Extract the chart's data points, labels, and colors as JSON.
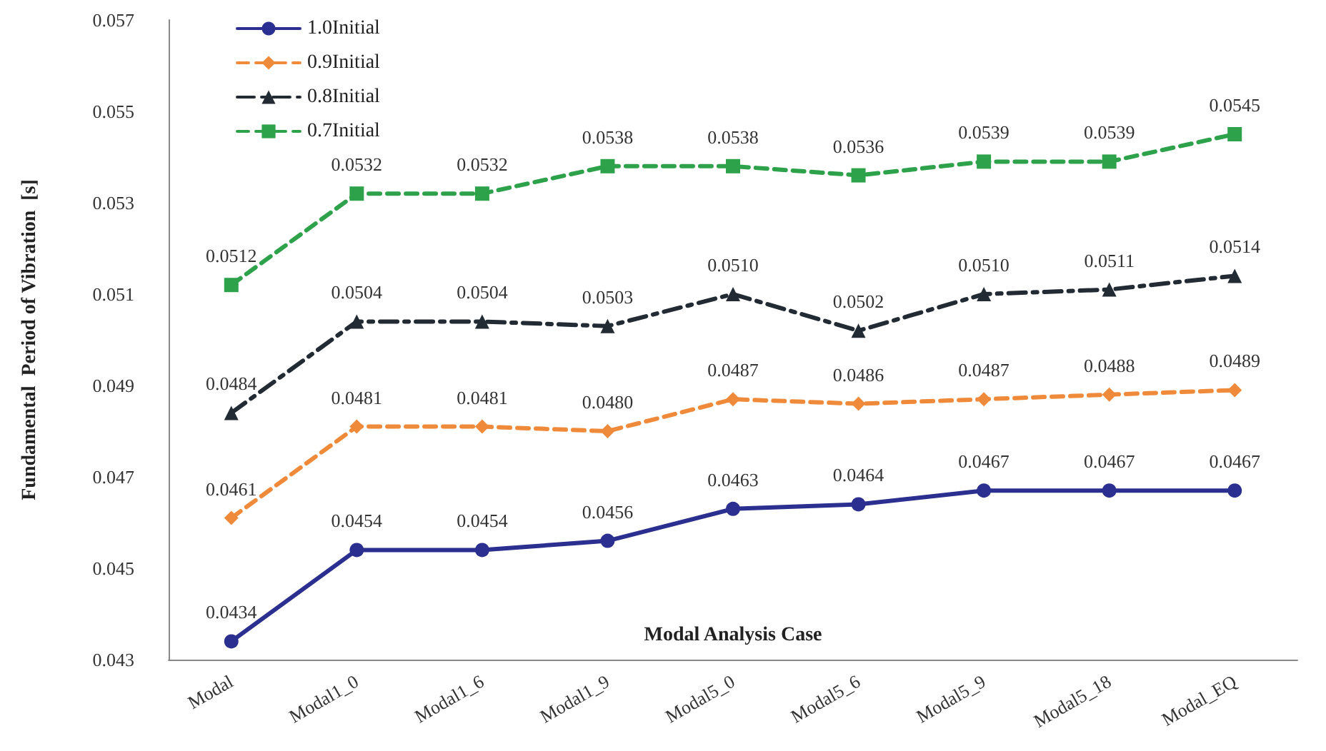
{
  "chart_data": {
    "type": "line",
    "xlabel": "Modal Analysis Case",
    "ylabel": "Fundamental  Period of Vibration  [s]",
    "categories": [
      "Modal",
      "Modal1_0",
      "Modal1_6",
      "Modal1_9",
      "Modal5_0",
      "Modal5_6",
      "Modal5_9",
      "Modal5_18",
      "Modal_EQ"
    ],
    "series": [
      {
        "name": "1.0Initial",
        "color": "#2b2f8f",
        "marker": "circle",
        "line_style": "solid",
        "values": [
          0.0434,
          0.0454,
          0.0454,
          0.0456,
          0.0463,
          0.0464,
          0.0467,
          0.0467,
          0.0467
        ],
        "value_labels": [
          "0.0434",
          "0.0454",
          "0.0454",
          "0.0456",
          "0.0463",
          "0.0464",
          "0.0467",
          "0.0467",
          "0.0467"
        ]
      },
      {
        "name": "0.9Initial",
        "color": "#ef8a3a",
        "marker": "diamond",
        "line_style": "dashed",
        "values": [
          0.0461,
          0.0481,
          0.0481,
          0.048,
          0.0487,
          0.0486,
          0.0487,
          0.0488,
          0.0489
        ],
        "value_labels": [
          "0.0461",
          "0.0481",
          "0.0481",
          "0.0480",
          "0.0487",
          "0.0486",
          "0.0487",
          "0.0488",
          "0.0489"
        ]
      },
      {
        "name": "0.8Initial",
        "color": "#222a33",
        "marker": "triangle",
        "line_style": "dashdot",
        "values": [
          0.0484,
          0.0504,
          0.0504,
          0.0503,
          0.051,
          0.0502,
          0.051,
          0.0511,
          0.0514
        ],
        "value_labels": [
          "0.0484",
          "0.0504",
          "0.0504",
          "0.0503",
          "0.0510",
          "0.0502",
          "0.0510",
          "0.0511",
          "0.0514"
        ]
      },
      {
        "name": "0.7Initial",
        "color": "#2ea24a",
        "marker": "square",
        "line_style": "dashed",
        "values": [
          0.0512,
          0.0532,
          0.0532,
          0.0538,
          0.0538,
          0.0536,
          0.0539,
          0.0539,
          0.0545
        ],
        "value_labels": [
          "0.0512",
          "0.0532",
          "0.0532",
          "0.0538",
          "0.0538",
          "0.0536",
          "0.0539",
          "0.0539",
          "0.0545"
        ]
      }
    ],
    "ylim": [
      0.043,
      0.057
    ],
    "yticks": [
      0.043,
      0.045,
      0.047,
      0.049,
      0.051,
      0.053,
      0.055,
      0.057
    ],
    "grid": false,
    "legend": "top left"
  }
}
